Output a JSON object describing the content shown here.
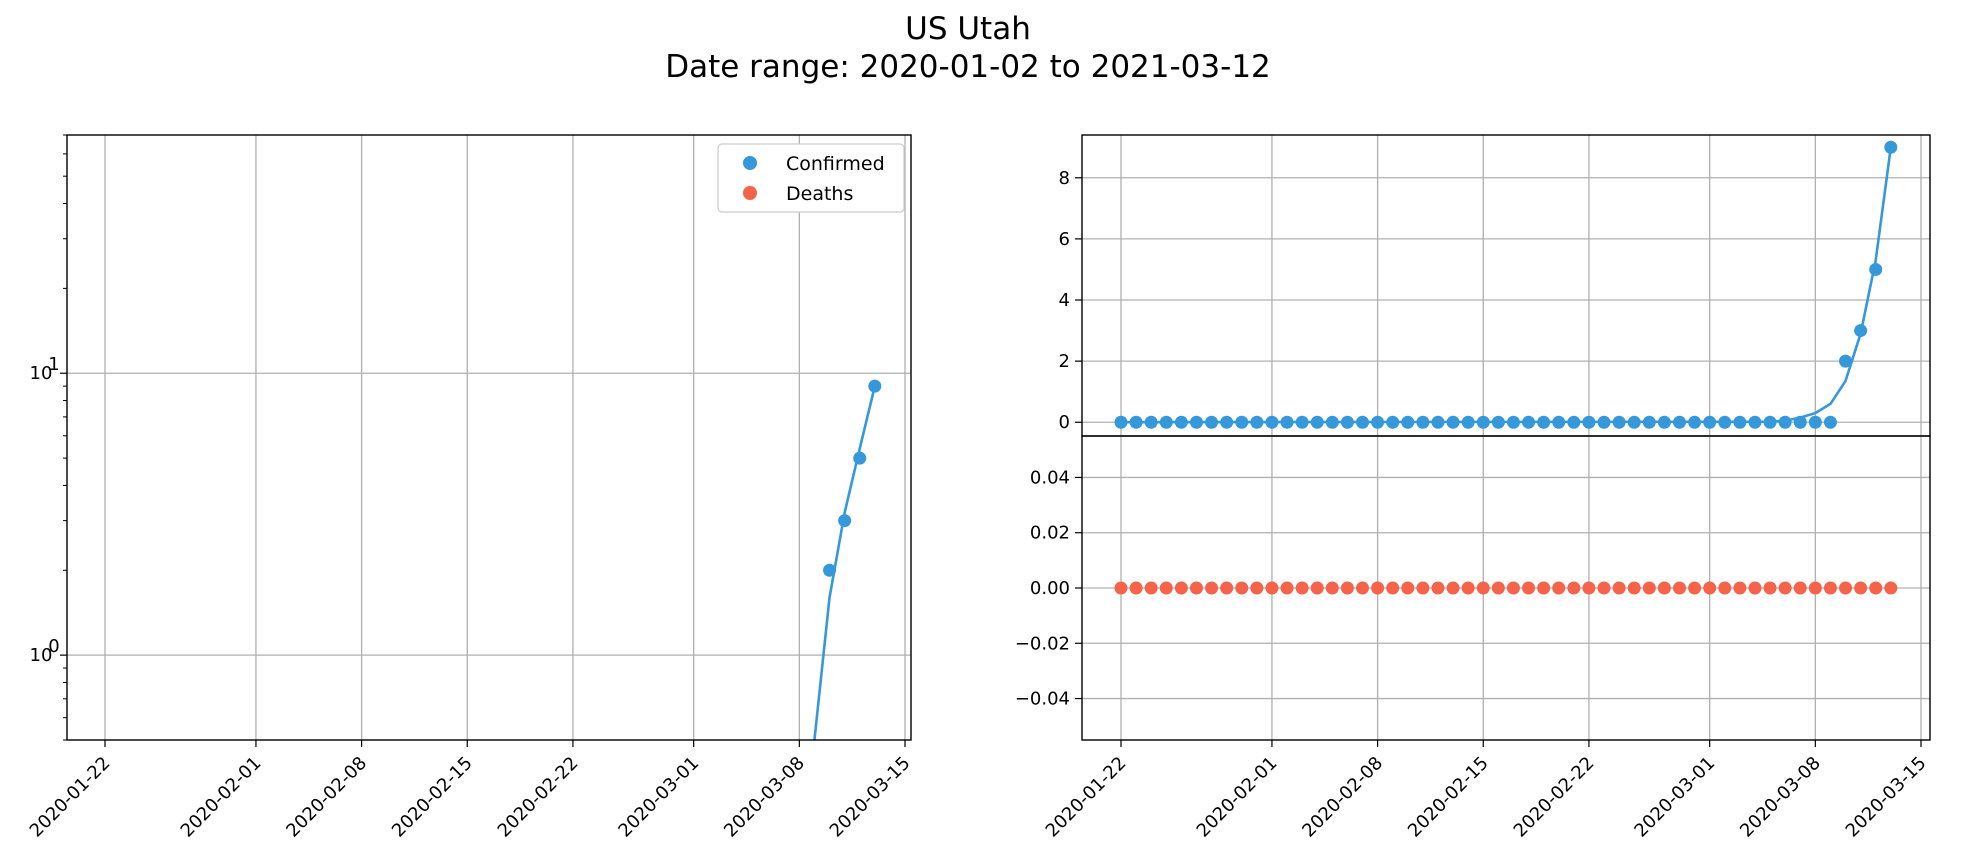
{
  "figure": {
    "title_line1": "US Utah",
    "title_line2": "Date range: 2020-01-02 to 2021-03-12"
  },
  "colors": {
    "confirmed": "#3498db",
    "deaths": "#f4634a",
    "grid": "#b0b0b0"
  },
  "chart_data": [
    {
      "type": "line",
      "panel": "left",
      "yscale": "log",
      "x_tick_labels": [
        "2020-01-22",
        "2020-02-01",
        "2020-02-08",
        "2020-02-15",
        "2020-02-22",
        "2020-03-01",
        "2020-03-08",
        "2020-03-15"
      ],
      "y_tick_labels": [
        {
          "base": "10",
          "exp": "1"
        },
        {
          "base": "10",
          "exp": "0"
        }
      ],
      "ylim": [
        0.5,
        70
      ],
      "grid": true,
      "legend": {
        "placement": "upper right",
        "entries": [
          "Confirmed",
          "Deaths"
        ]
      },
      "series": [
        {
          "name": "Confirmed",
          "style": "markers",
          "color": "#3498db",
          "x": [
            "2020-03-10",
            "2020-03-11",
            "2020-03-12",
            "2020-03-13"
          ],
          "y": [
            2,
            3,
            5,
            9
          ]
        },
        {
          "name": "Confirmed fit",
          "style": "line",
          "color": "#3498db",
          "x": [
            "2020-03-09",
            "2020-03-10",
            "2020-03-11",
            "2020-03-12",
            "2020-03-13"
          ],
          "y": [
            0.5,
            1.6,
            3.2,
            5.4,
            9
          ]
        }
      ]
    },
    {
      "type": "line",
      "panel": "right-top",
      "x_tick_labels": [
        "2020-01-22",
        "2020-02-01",
        "2020-02-08",
        "2020-02-15",
        "2020-02-22",
        "2020-03-01",
        "2020-03-08",
        "2020-03-15"
      ],
      "y_tick_labels": [
        "0",
        "2",
        "4",
        "6",
        "8"
      ],
      "ylim": [
        -0.45,
        9.4
      ],
      "grid": true,
      "series": [
        {
          "name": "Confirmed",
          "style": "markers",
          "color": "#3498db",
          "x_start": "2020-01-22",
          "x_end": "2020-03-13",
          "y": [
            0,
            0,
            0,
            0,
            0,
            0,
            0,
            0,
            0,
            0,
            0,
            0,
            0,
            0,
            0,
            0,
            0,
            0,
            0,
            0,
            0,
            0,
            0,
            0,
            0,
            0,
            0,
            0,
            0,
            0,
            0,
            0,
            0,
            0,
            0,
            0,
            0,
            0,
            0,
            0,
            0,
            0,
            0,
            0,
            0,
            0,
            0,
            0,
            2,
            3,
            5,
            9
          ]
        },
        {
          "name": "Confirmed fit",
          "style": "line",
          "color": "#3498db",
          "x": [
            "2020-01-22",
            "2020-03-05",
            "2020-03-06",
            "2020-03-07",
            "2020-03-08",
            "2020-03-09",
            "2020-03-10",
            "2020-03-11",
            "2020-03-12",
            "2020-03-13"
          ],
          "y": [
            0,
            0.02,
            0.05,
            0.15,
            0.3,
            0.6,
            1.35,
            2.9,
            5.3,
            9
          ]
        }
      ]
    },
    {
      "type": "scatter",
      "panel": "right-bottom",
      "x_tick_labels": [
        "2020-01-22",
        "2020-02-01",
        "2020-02-08",
        "2020-02-15",
        "2020-02-22",
        "2020-03-01",
        "2020-03-08",
        "2020-03-15"
      ],
      "y_tick_labels": [
        "0.04",
        "0.02",
        "0.00",
        "−0.02",
        "−0.04"
      ],
      "ylim": [
        -0.055,
        0.055
      ],
      "grid": true,
      "series": [
        {
          "name": "Deaths",
          "style": "markers",
          "color": "#f4634a",
          "x_start": "2020-01-22",
          "x_end": "2020-03-13",
          "y": [
            0,
            0,
            0,
            0,
            0,
            0,
            0,
            0,
            0,
            0,
            0,
            0,
            0,
            0,
            0,
            0,
            0,
            0,
            0,
            0,
            0,
            0,
            0,
            0,
            0,
            0,
            0,
            0,
            0,
            0,
            0,
            0,
            0,
            0,
            0,
            0,
            0,
            0,
            0,
            0,
            0,
            0,
            0,
            0,
            0,
            0,
            0,
            0,
            0,
            0,
            0,
            0
          ]
        }
      ]
    }
  ]
}
